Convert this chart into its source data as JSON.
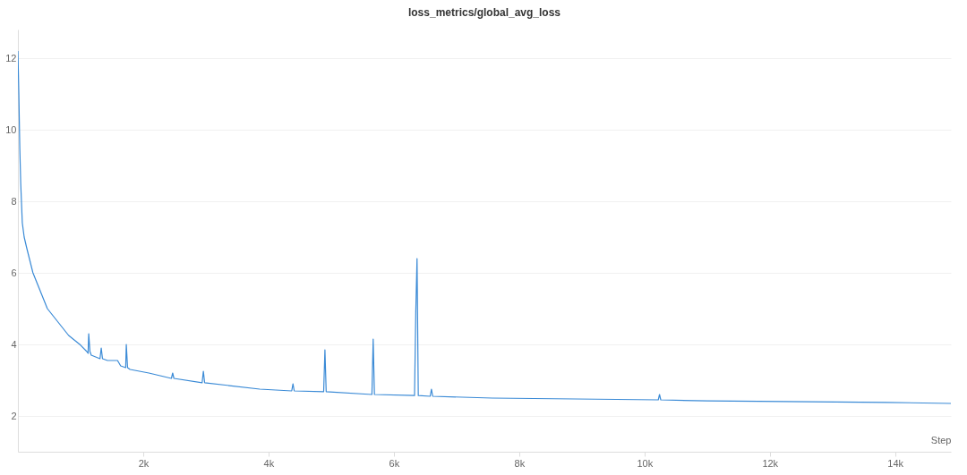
{
  "chart_data": {
    "type": "line",
    "title": "loss_metrics/global_avg_loss",
    "xlabel": "Step",
    "xlim": [
      0,
      14890
    ],
    "ylim": [
      1,
      12.8
    ],
    "xticks": [
      {
        "value": 2000,
        "label": "2k"
      },
      {
        "value": 4000,
        "label": "4k"
      },
      {
        "value": 6000,
        "label": "6k"
      },
      {
        "value": 8000,
        "label": "8k"
      },
      {
        "value": 10000,
        "label": "10k"
      },
      {
        "value": 12000,
        "label": "12k"
      },
      {
        "value": 14000,
        "label": "14k"
      }
    ],
    "yticks": [
      2,
      4,
      6,
      8,
      10,
      12
    ],
    "grid": "y",
    "line_style": "solid",
    "series": [
      {
        "color": "#3a8ad6",
        "x": [
          0,
          15,
          30,
          45,
          70,
          100,
          140,
          240,
          470,
          810,
          1000,
          1100,
          1120,
          1130,
          1150,
          1170,
          1310,
          1330,
          1350,
          1430,
          1590,
          1640,
          1720,
          1730,
          1750,
          1790,
          2090,
          2450,
          2470,
          2490,
          2940,
          2960,
          2980,
          3860,
          4370,
          4390,
          4410,
          4880,
          4900,
          4920,
          5650,
          5670,
          5690,
          6330,
          6350,
          6370,
          6390,
          6580,
          6600,
          6620,
          7570,
          10220,
          10240,
          10260,
          11000,
          13860,
          14890
        ],
        "values": [
          12.2,
          11,
          9.5,
          8.5,
          7.4,
          7.0,
          6.7,
          6.0,
          5.0,
          4.25,
          3.98,
          3.8,
          3.75,
          4.3,
          3.8,
          3.7,
          3.6,
          3.9,
          3.6,
          3.55,
          3.55,
          3.4,
          3.35,
          4.0,
          3.35,
          3.3,
          3.2,
          3.05,
          3.2,
          3.05,
          2.93,
          3.25,
          2.93,
          2.75,
          2.7,
          2.9,
          2.7,
          2.68,
          3.85,
          2.68,
          2.6,
          4.15,
          2.6,
          2.57,
          4.9,
          6.4,
          2.57,
          2.55,
          2.75,
          2.55,
          2.5,
          2.45,
          2.6,
          2.45,
          2.42,
          2.38,
          2.35
        ]
      }
    ]
  }
}
